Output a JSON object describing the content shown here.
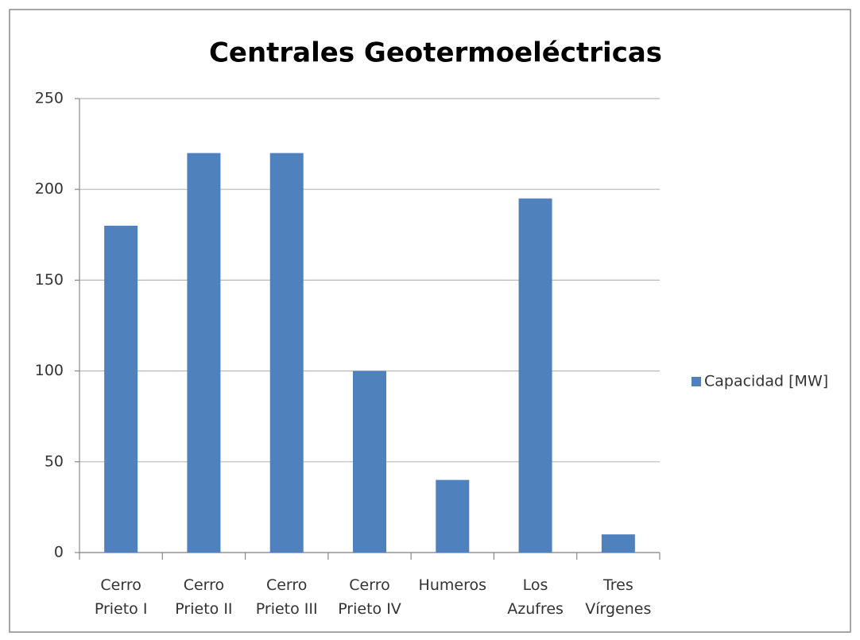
{
  "chart_data": {
    "type": "bar",
    "title": "Centrales Geotermoeléctricas",
    "categories": [
      "Cerro Prieto I",
      "Cerro Prieto II",
      "Cerro Prieto III",
      "Cerro Prieto IV",
      "Humeros",
      "Los Azufres",
      "Tres Vírgenes"
    ],
    "series": [
      {
        "name": "Capacidad [MW]",
        "color": "#4f81bd",
        "values": [
          180,
          220,
          220,
          100,
          40,
          195,
          10
        ]
      }
    ],
    "ylim": [
      0,
      250
    ],
    "yticks": [
      0,
      50,
      100,
      150,
      200,
      250
    ],
    "grid": true,
    "legend": "right"
  }
}
